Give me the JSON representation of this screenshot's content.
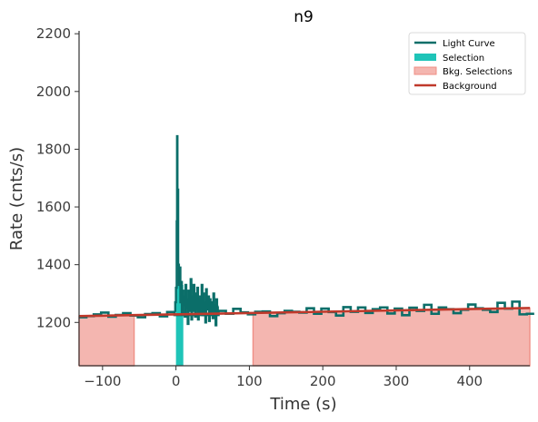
{
  "chart_data": {
    "type": "line",
    "title": "n9",
    "xlabel": "Time (s)",
    "ylabel": "Rate (cnts/s)",
    "xlim": [
      -132,
      482
    ],
    "ylim": [
      1050,
      2210
    ],
    "x_ticks": [
      -100,
      0,
      100,
      200,
      300,
      400
    ],
    "x_tick_labels": [
      "−100",
      "0",
      "100",
      "200",
      "300",
      "400"
    ],
    "y_ticks": [
      1200,
      1400,
      1600,
      1800,
      2000,
      2200
    ],
    "y_tick_labels": [
      "1200",
      "1400",
      "1600",
      "1800",
      "2000",
      "2200"
    ],
    "grid": false,
    "legend_position": "top-right",
    "colors": {
      "light_curve": "#0b6e69",
      "selection": "#1fc4b8",
      "bkg_selection": "#f4b6b0",
      "bkg_selection_edge": "#ef8f85",
      "background": "#c0392b"
    },
    "legend": [
      {
        "label": "Light Curve",
        "kind": "line",
        "color_key": "light_curve"
      },
      {
        "label": "Selection",
        "kind": "patch",
        "color_key": "selection"
      },
      {
        "label": "Bkg. Selections",
        "kind": "patch",
        "color_key": "bkg_selection"
      },
      {
        "label": "Background",
        "kind": "line",
        "color_key": "background"
      }
    ],
    "background_fit": {
      "x": [
        -132,
        482
      ],
      "y": [
        1222,
        1250
      ]
    },
    "bkg_selections": [
      [
        -132,
        -57
      ],
      [
        105,
        482
      ]
    ],
    "selection": [
      0,
      10
    ],
    "light_curve_coarse": {
      "x": [
        -132,
        -122,
        -112,
        -102,
        -92,
        -82,
        -72,
        -62,
        -52,
        -42,
        -32,
        -22,
        -12,
        -2,
        58,
        68,
        78,
        88,
        98,
        108,
        118,
        128,
        138,
        148,
        158,
        168,
        178,
        188,
        198,
        208,
        218,
        228,
        238,
        248,
        258,
        268,
        278,
        288,
        298,
        308,
        318,
        328,
        338,
        348,
        358,
        368,
        378,
        388,
        398,
        408,
        418,
        428,
        438,
        448,
        458,
        468,
        478
      ],
      "y": [
        1218,
        1222,
        1228,
        1234,
        1220,
        1226,
        1232,
        1224,
        1218,
        1229,
        1232,
        1221,
        1236,
        1226,
        1240,
        1230,
        1247,
        1235,
        1228,
        1237,
        1238,
        1222,
        1232,
        1240,
        1237,
        1234,
        1249,
        1230,
        1248,
        1236,
        1224,
        1253,
        1237,
        1252,
        1233,
        1246,
        1252,
        1231,
        1248,
        1225,
        1251,
        1240,
        1261,
        1230,
        1252,
        1246,
        1232,
        1244,
        1262,
        1249,
        1244,
        1236,
        1268,
        1248,
        1272,
        1228,
        1230
      ]
    },
    "light_curve_fine": {
      "x": [
        -2,
        -1,
        0,
        1,
        1.5,
        2,
        3,
        4,
        5,
        6,
        7,
        8,
        9,
        10,
        11,
        12,
        13,
        14,
        15,
        16,
        17,
        18,
        19,
        20,
        21,
        22,
        23,
        24,
        25,
        26,
        27,
        28,
        29,
        30,
        31,
        32,
        33,
        34,
        35,
        36,
        37,
        38,
        39,
        40,
        41,
        42,
        43,
        44,
        45,
        46,
        47,
        48,
        49,
        50,
        51,
        52,
        53,
        54,
        55,
        56,
        57
      ],
      "y": [
        1240,
        1270,
        1320,
        1550,
        1845,
        1660,
        1400,
        1330,
        1390,
        1270,
        1340,
        1230,
        1310,
        1260,
        1290,
        1220,
        1330,
        1250,
        1280,
        1195,
        1310,
        1240,
        1275,
        1350,
        1210,
        1290,
        1240,
        1330,
        1260,
        1220,
        1300,
        1245,
        1320,
        1210,
        1280,
        1235,
        1290,
        1250,
        1330,
        1225,
        1300,
        1240,
        1270,
        1200,
        1315,
        1260,
        1245,
        1290,
        1205,
        1280,
        1230,
        1270,
        1255,
        1215,
        1300,
        1240,
        1260,
        1190,
        1280,
        1230,
        1255
      ]
    }
  }
}
